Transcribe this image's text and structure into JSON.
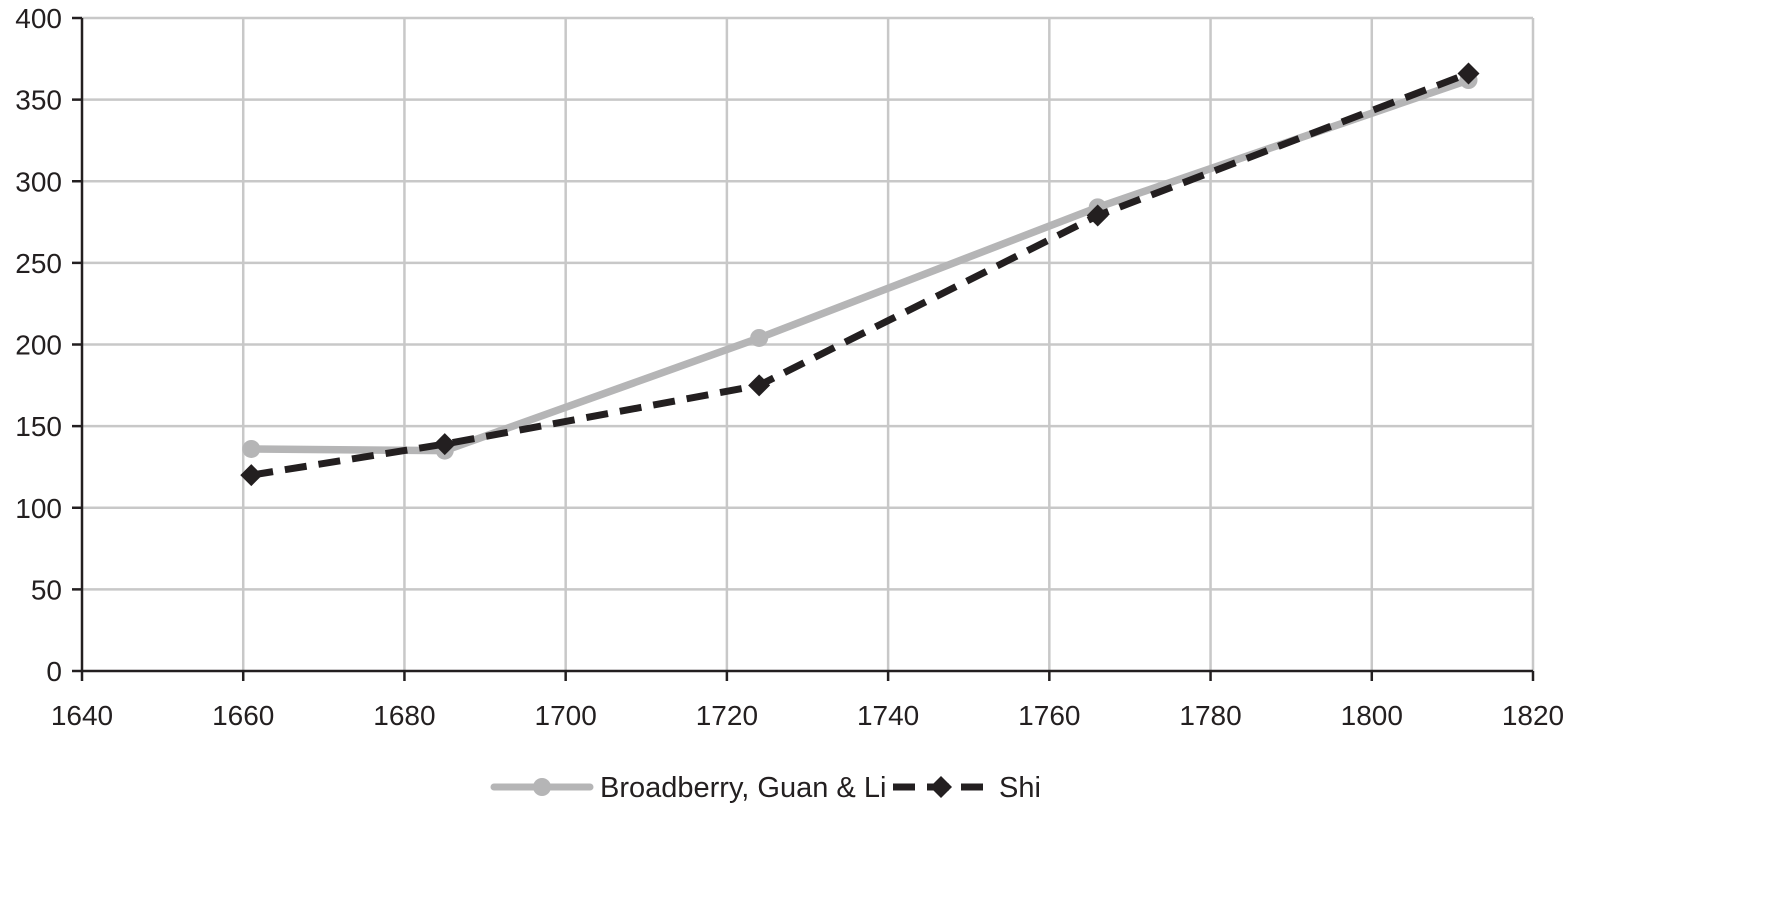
{
  "chart_data": {
    "type": "line",
    "title": "",
    "xlabel": "",
    "ylabel": "",
    "xlim": [
      1640,
      1820
    ],
    "ylim": [
      0,
      400
    ],
    "x_ticks": [
      1640,
      1660,
      1680,
      1700,
      1720,
      1740,
      1760,
      1780,
      1800,
      1820
    ],
    "y_ticks": [
      0,
      50,
      100,
      150,
      200,
      250,
      300,
      350,
      400
    ],
    "grid": true,
    "legend_position": "bottom",
    "series": [
      {
        "name": "Broadberry, Guan & Li",
        "color": "#b5b5b6",
        "line_style": "solid",
        "marker": "circle",
        "x": [
          1661,
          1685,
          1724,
          1766,
          1812
        ],
        "y": [
          136,
          135,
          204,
          284,
          362
        ]
      },
      {
        "name": "Shi",
        "color": "#231f20",
        "line_style": "dashed",
        "marker": "diamond",
        "x": [
          1661,
          1685,
          1724,
          1766,
          1812
        ],
        "y": [
          120,
          139,
          175,
          279,
          366
        ]
      }
    ]
  }
}
